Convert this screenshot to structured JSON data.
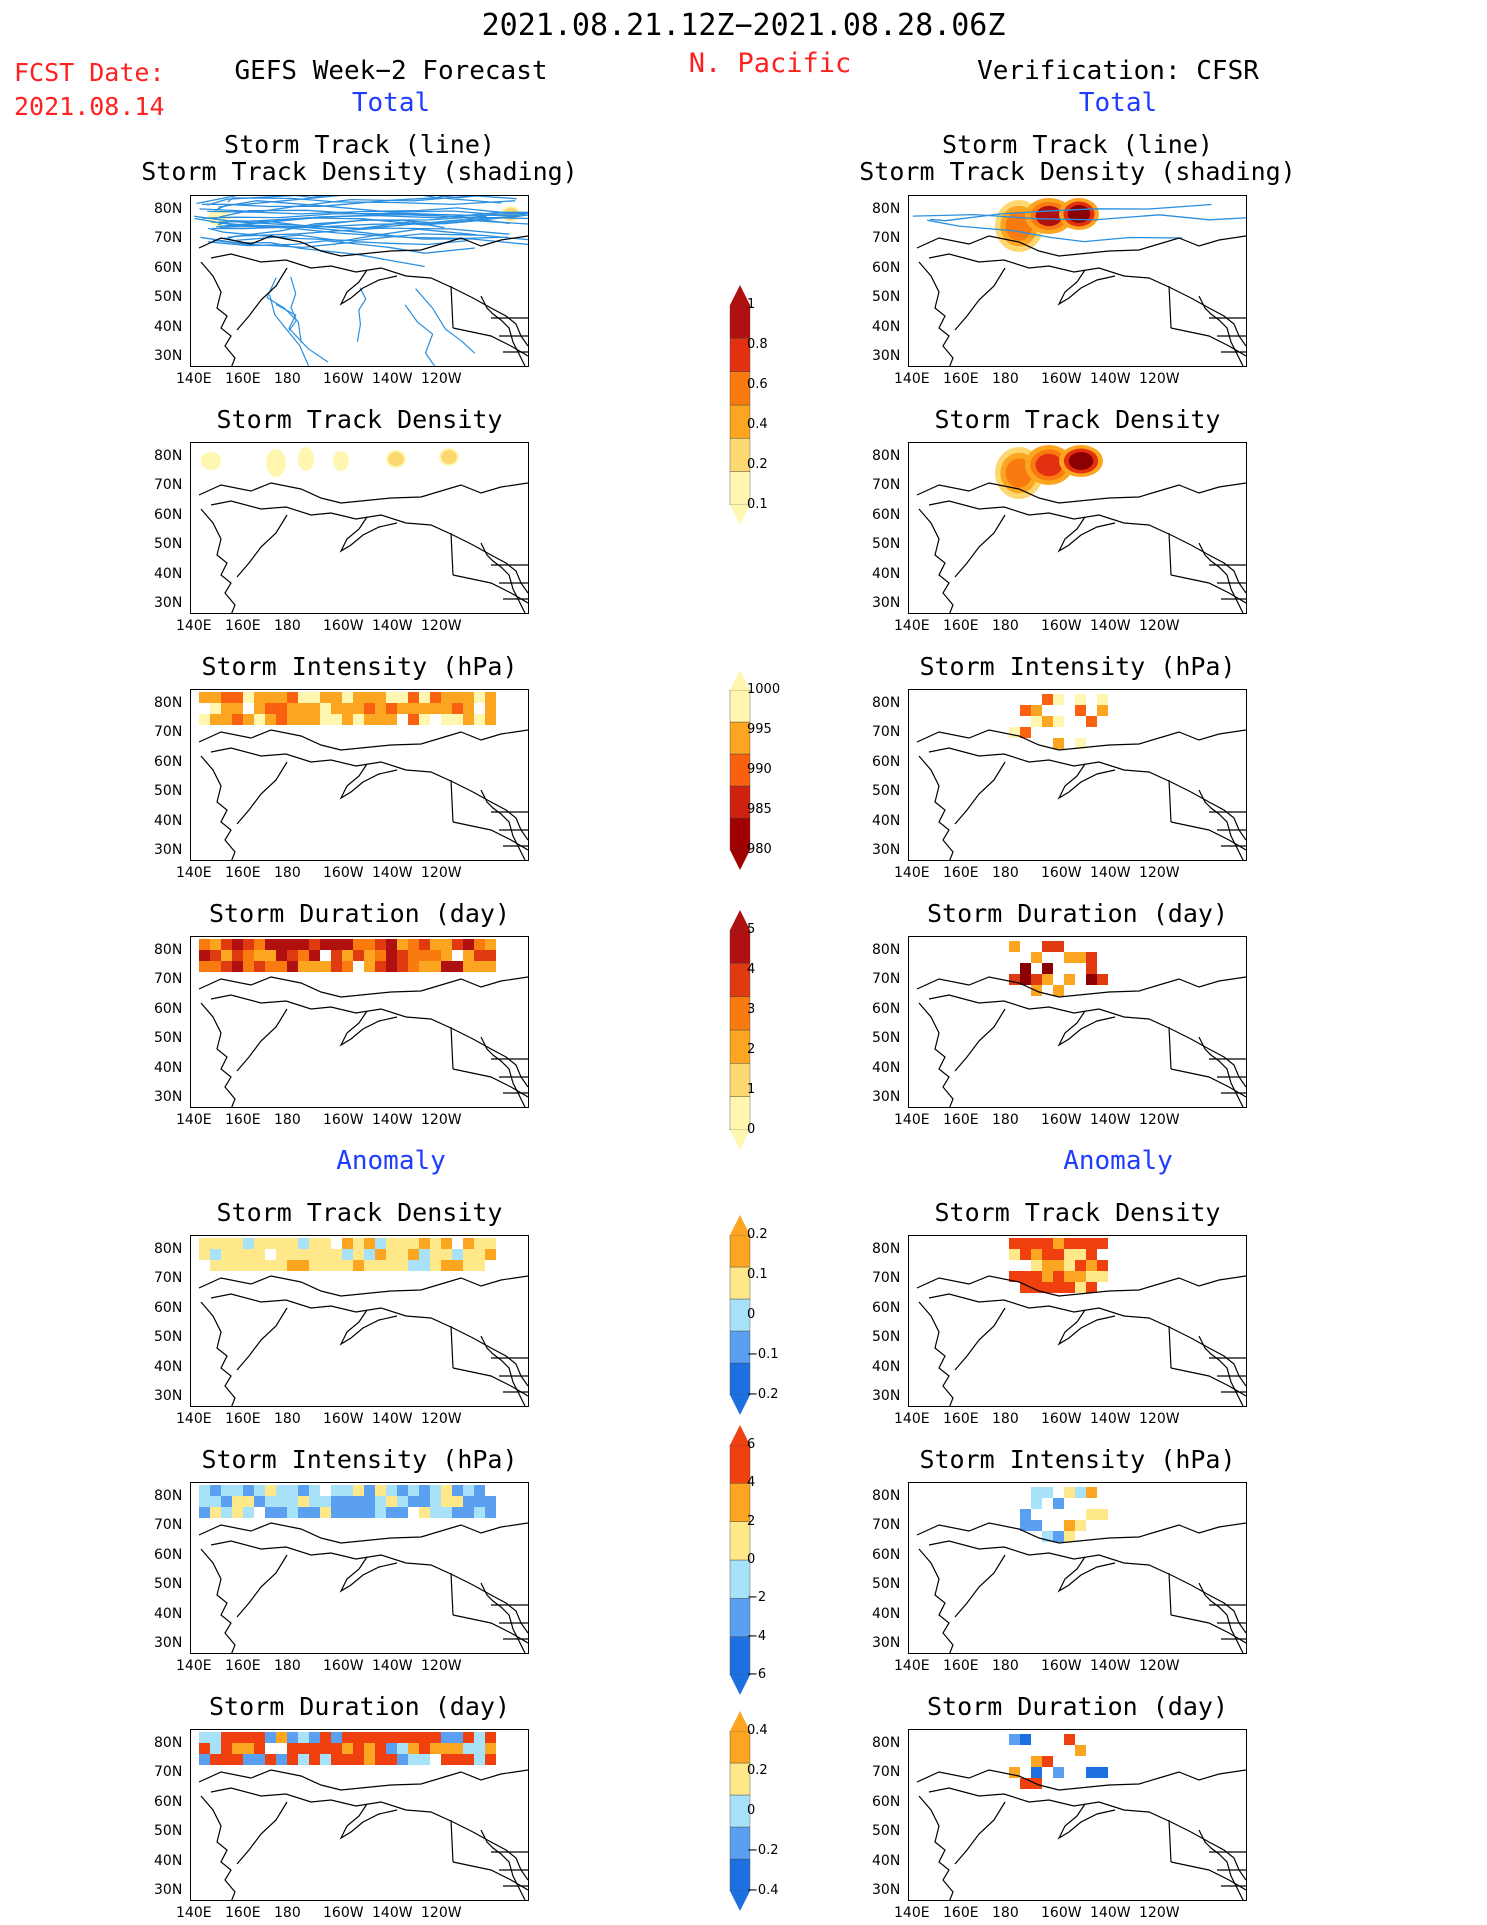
{
  "header": {
    "date_range": "2021.08.21.12Z−2021.08.28.06Z",
    "fcst_label": "FCST Date:",
    "fcst_date": "2021.08.14",
    "region": "N. Pacific",
    "left_title": "GEFS Week−2 Forecast",
    "right_title": "Verification: CFSR"
  },
  "sections": {
    "total": "Total",
    "anomaly": "Anomaly"
  },
  "panel_titles": {
    "track": [
      "Storm Track (line)",
      "Storm Track Density (shading)"
    ],
    "density": "Storm Track Density",
    "intensity": "Storm Intensity (hPa)",
    "duration": "Storm Duration (day)"
  },
  "axes": {
    "lat_labels": [
      "80N",
      "70N",
      "60N",
      "50N",
      "40N",
      "30N"
    ],
    "lon_labels": [
      "140E",
      "160E",
      "180",
      "160W",
      "140W",
      "120W"
    ]
  },
  "colorbars": {
    "density_total": [
      "1",
      "0.8",
      "0.6",
      "0.4",
      "0.2",
      "0.1"
    ],
    "intensity_total": [
      "1000",
      "995",
      "990",
      "985",
      "980"
    ],
    "duration_total": [
      "5",
      "4",
      "3",
      "2",
      "1",
      "0"
    ],
    "density_anom": [
      "0.2",
      "0.1",
      "0",
      "−0.1",
      "−0.2"
    ],
    "intensity_anom": [
      "6",
      "4",
      "2",
      "0",
      "−2",
      "−4",
      "−6"
    ],
    "duration_anom": [
      "0.4",
      "0.2",
      "0",
      "−0.2",
      "−0.4"
    ]
  },
  "colors": {
    "density_ramp": [
      "#fff7b0",
      "#fdd870",
      "#fca520",
      "#f97b10",
      "#e33010",
      "#b01010",
      "#8b0000"
    ],
    "intensity_ramp": [
      "#fff7b0",
      "#fca520",
      "#f96010",
      "#d02010",
      "#a00000"
    ],
    "duration_ramp": [
      "#fff7b0",
      "#fdd870",
      "#fca520",
      "#f97b10",
      "#e03a10",
      "#b01010",
      "#8b0000"
    ],
    "anom_ramp": [
      "#1e70e0",
      "#5ba0f0",
      "#a8e2f8",
      "#ffe88a",
      "#fca520",
      "#f04010"
    ],
    "track_line": "#2a8fe0",
    "title_red": "#ff2020",
    "section_blue": "#1f3cff"
  }
}
